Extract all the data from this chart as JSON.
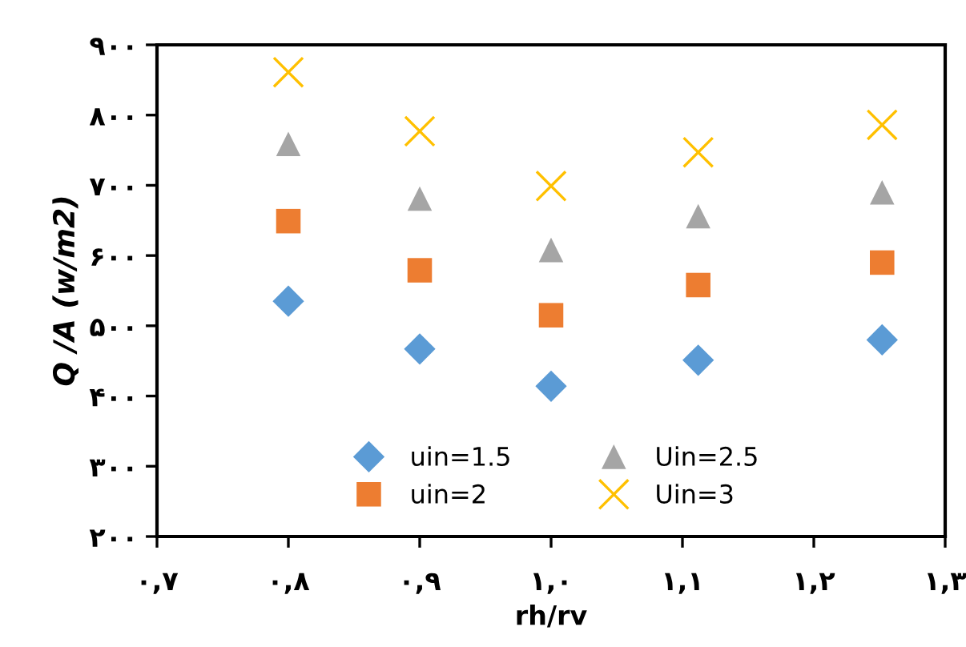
{
  "chart_data": {
    "type": "scatter",
    "xlabel": "rh/rv",
    "ylabel": "Q /A (w/m2)",
    "x": [
      0.8,
      0.9,
      1.0,
      1.112,
      1.252
    ],
    "series": [
      {
        "name": "uin=1.5",
        "color": "#5b9bd5",
        "marker": "diamond",
        "values": [
          535,
          467,
          414,
          451,
          480
        ]
      },
      {
        "name": "uin=2",
        "color": "#ed7d31",
        "marker": "square",
        "values": [
          649,
          579,
          515,
          558,
          590
        ]
      },
      {
        "name": "Uin=2.5",
        "color": "#a5a5a5",
        "marker": "triangle",
        "values": [
          759,
          681,
          608,
          656,
          690
        ]
      },
      {
        "name": "Uin=3",
        "color": "#ffc000",
        "marker": "cross",
        "values": [
          861,
          777,
          699,
          747,
          786
        ]
      }
    ],
    "xlim": [
      0.7,
      1.3
    ],
    "xticks": [
      {
        "value": 0.7,
        "label": "۰,۷"
      },
      {
        "value": 0.8,
        "label": "۰,۸"
      },
      {
        "value": 0.9,
        "label": "۰,۹"
      },
      {
        "value": 1.0,
        "label": "۱,۰"
      },
      {
        "value": 1.1,
        "label": "۱,۱"
      },
      {
        "value": 1.2,
        "label": "۱,۲"
      },
      {
        "value": 1.3,
        "label": "۱,۳"
      }
    ],
    "ylim": [
      200,
      900
    ],
    "yticks": [
      {
        "value": 200,
        "label": "۲۰۰"
      },
      {
        "value": 300,
        "label": "۳۰۰"
      },
      {
        "value": 400,
        "label": "۴۰۰"
      },
      {
        "value": 500,
        "label": "۵۰۰"
      },
      {
        "value": 600,
        "label": "۶۰۰"
      },
      {
        "value": 700,
        "label": "۷۰۰"
      },
      {
        "value": 800,
        "label": "۸۰۰"
      },
      {
        "value": 900,
        "label": "۹۰۰"
      }
    ],
    "grid": false,
    "legend": "bottom"
  }
}
